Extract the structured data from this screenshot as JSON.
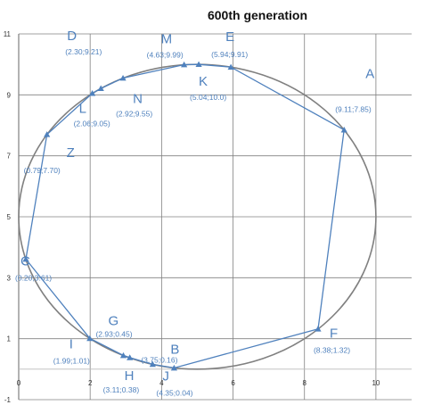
{
  "chart_data": {
    "type": "scatter",
    "title": "600th generation",
    "xlim": [
      0,
      11
    ],
    "ylim": [
      -1,
      11
    ],
    "x_ticks": [
      "0",
      "2",
      "4",
      "6",
      "8",
      "10"
    ],
    "y_ticks": [
      "-1",
      "1",
      "3",
      "5",
      "7",
      "9",
      "11"
    ],
    "grid": true,
    "circle": {
      "cx": 5,
      "cy": 5,
      "r": 5
    },
    "route_order": [
      "K",
      "E",
      "A",
      "F",
      "J",
      "B",
      "H",
      "G",
      "I",
      "C",
      "Z",
      "L",
      "D",
      "N",
      "M",
      "K"
    ],
    "points": [
      {
        "name": "A",
        "label": "(9.11;7.85)",
        "x": 9.11,
        "y": 7.85
      },
      {
        "name": "B",
        "label": "(3.75;0.16)",
        "x": 3.75,
        "y": 0.16
      },
      {
        "name": "C",
        "label": "(0.20;3.61)",
        "x": 0.2,
        "y": 3.61
      },
      {
        "name": "D",
        "label": "(2.30;9.21)",
        "x": 2.3,
        "y": 9.21
      },
      {
        "name": "E",
        "label": "(5.94;9.91)",
        "x": 5.94,
        "y": 9.91
      },
      {
        "name": "F",
        "label": "(8.38;1.32)",
        "x": 8.38,
        "y": 1.32
      },
      {
        "name": "G",
        "label": "(2.93;0.45)",
        "x": 2.93,
        "y": 0.45
      },
      {
        "name": "H",
        "label": "(3.11;0.38)",
        "x": 3.11,
        "y": 0.38
      },
      {
        "name": "I",
        "label": "(1.99;1.01)",
        "x": 1.99,
        "y": 1.01
      },
      {
        "name": "J",
        "label": "(4.35;0.04)",
        "x": 4.35,
        "y": 0.04
      },
      {
        "name": "K",
        "label": "(5.04;10.0)",
        "x": 5.04,
        "y": 10.0
      },
      {
        "name": "L",
        "label": "(2.06;9.05)",
        "x": 2.06,
        "y": 9.05
      },
      {
        "name": "M",
        "label": "(4.63;9.99)",
        "x": 4.63,
        "y": 9.99
      },
      {
        "name": "N",
        "label": "(2.92;9.55)",
        "x": 2.92,
        "y": 9.55
      },
      {
        "name": "Z",
        "label": "(0.79;7.70)",
        "x": 0.79,
        "y": 7.7
      }
    ],
    "colors": {
      "route": "#4f81bd",
      "circle": "#808080",
      "grid": "#808080",
      "text": "#4f81bd"
    }
  }
}
